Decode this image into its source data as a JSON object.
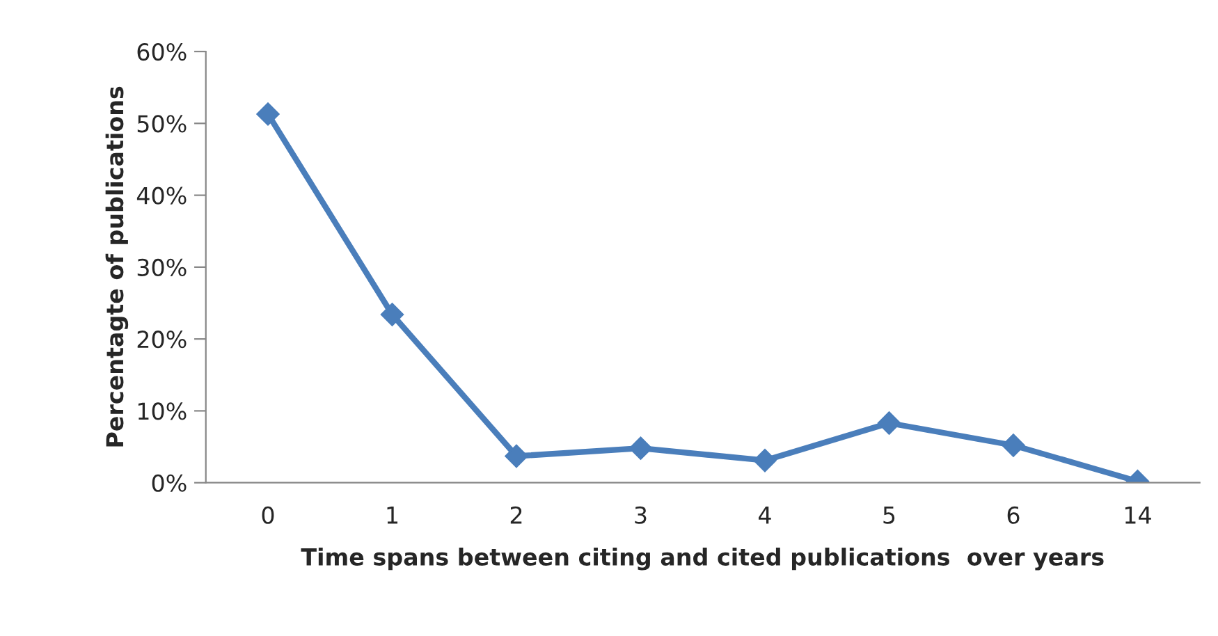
{
  "chart_data": {
    "type": "line",
    "xlabel": "Time spans between citing and cited publications  over years",
    "ylabel": "Percentagte of publications",
    "categories": [
      "0",
      "1",
      "2",
      "3",
      "4",
      "5",
      "6",
      "14"
    ],
    "series": [
      {
        "color": "#4a7ebb",
        "values": [
          51.3,
          23.4,
          3.7,
          4.8,
          3.1,
          8.3,
          5.2,
          0.2
        ]
      }
    ],
    "ylim": [
      0,
      60
    ],
    "yticks": [
      {
        "value": 0,
        "label": "0%"
      },
      {
        "value": 10,
        "label": "10%"
      },
      {
        "value": 20,
        "label": "20%"
      },
      {
        "value": 30,
        "label": "30%"
      },
      {
        "value": 40,
        "label": "40%"
      },
      {
        "value": 50,
        "label": "50%"
      },
      {
        "value": 60,
        "label": "60%"
      }
    ],
    "grid": false,
    "legend": false,
    "marker": "diamond",
    "line_style": "solid"
  }
}
